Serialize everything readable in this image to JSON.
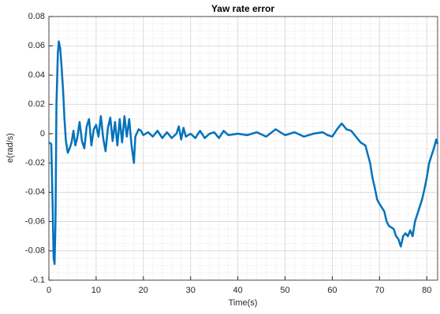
{
  "chart_data": {
    "type": "line",
    "title": "Yaw rate error",
    "x_label": "Time(s)",
    "y_label": "e(rad/s)",
    "xlim": [
      0,
      82.3
    ],
    "ylim": [
      -0.1,
      0.08
    ],
    "xticks": [
      0,
      10,
      20,
      30,
      40,
      50,
      60,
      70,
      80
    ],
    "yticks": [
      -0.1,
      -0.08,
      -0.06,
      -0.04,
      -0.02,
      0,
      0.02,
      0.04,
      0.06,
      0.08
    ],
    "grid": true,
    "minor_grid": true,
    "series": [
      {
        "name": "e",
        "color": "#0072bd",
        "x": [
          0,
          0.5,
          0.8,
          1.0,
          1.2,
          1.4,
          1.6,
          1.9,
          2.1,
          2.4,
          2.7,
          3.0,
          3.3,
          3.6,
          4.0,
          4.4,
          4.8,
          5.2,
          5.6,
          6.0,
          6.5,
          7.0,
          7.5,
          8,
          8.5,
          9,
          9.5,
          10,
          10.5,
          11,
          11.5,
          12,
          12.5,
          13,
          13.5,
          14,
          14.5,
          15,
          15.5,
          16,
          16.5,
          17,
          17.5,
          18,
          18.3,
          19,
          19.5,
          20,
          21,
          22,
          23,
          24,
          25,
          26,
          27,
          27.5,
          28,
          28.5,
          29,
          30,
          31,
          32,
          33,
          34,
          35,
          36,
          37,
          38,
          40,
          42,
          44,
          46,
          48,
          50,
          52,
          54,
          56,
          58,
          59,
          60,
          61,
          62,
          63,
          64,
          65,
          66,
          67,
          68,
          68.5,
          69,
          69.5,
          70,
          71,
          71.5,
          72,
          73,
          73.5,
          74,
          74.5,
          75,
          75.5,
          76,
          76.5,
          77,
          77.5,
          78,
          78.5,
          79,
          79.5,
          80,
          80.5,
          81,
          81.5,
          82,
          82.3
        ],
        "values": [
          -0.006,
          -0.007,
          -0.05,
          -0.085,
          -0.089,
          -0.06,
          0.02,
          0.055,
          0.063,
          0.058,
          0.045,
          0.03,
          0.01,
          -0.005,
          -0.013,
          -0.01,
          -0.006,
          0.002,
          -0.008,
          -0.003,
          0.008,
          -0.005,
          -0.01,
          0.005,
          0.01,
          -0.008,
          0.003,
          0.006,
          -0.002,
          0.012,
          -0.003,
          -0.012,
          0.004,
          0.011,
          -0.005,
          0.008,
          -0.008,
          0.01,
          -0.006,
          0.012,
          -0.002,
          0.01,
          -0.008,
          -0.02,
          -0.002,
          0.003,
          0.002,
          -0.001,
          0.001,
          -0.002,
          0.002,
          -0.003,
          0.001,
          -0.003,
          0,
          0.005,
          -0.004,
          0.004,
          -0.002,
          0,
          -0.003,
          0.002,
          -0.003,
          0,
          0.001,
          -0.003,
          0.002,
          -0.001,
          0,
          -0.001,
          0.001,
          -0.002,
          0.003,
          -0.001,
          0.001,
          -0.002,
          0,
          0.001,
          -0.001,
          -0.002,
          0.003,
          0.007,
          0.003,
          0.002,
          -0.002,
          -0.006,
          -0.008,
          -0.02,
          -0.03,
          -0.037,
          -0.045,
          -0.048,
          -0.053,
          -0.06,
          -0.063,
          -0.065,
          -0.07,
          -0.072,
          -0.077,
          -0.07,
          -0.068,
          -0.07,
          -0.066,
          -0.07,
          -0.06,
          -0.055,
          -0.05,
          -0.045,
          -0.038,
          -0.03,
          -0.02,
          -0.015,
          -0.01,
          -0.004,
          -0.007
        ]
      }
    ]
  }
}
